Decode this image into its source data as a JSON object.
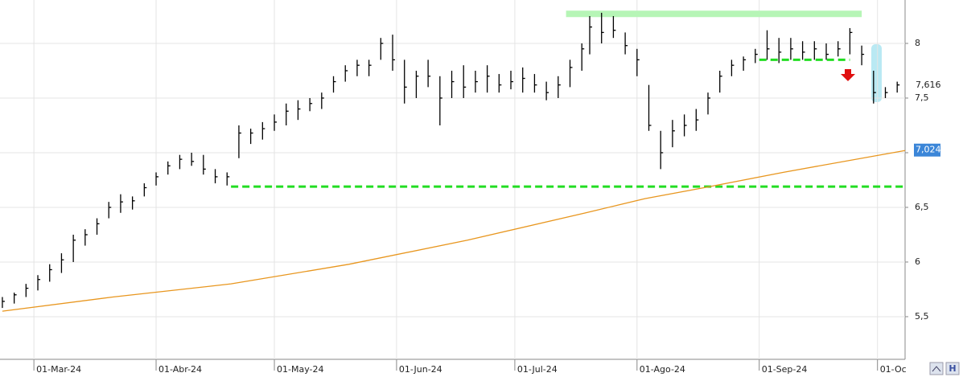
{
  "chart_data": {
    "type": "ohlc",
    "x": [
      -8,
      -5,
      -2,
      1,
      4,
      7,
      10,
      13,
      16,
      19,
      22,
      25,
      28,
      31,
      34,
      37,
      40,
      43,
      46,
      49,
      52,
      55,
      58,
      61,
      64,
      67,
      70,
      73,
      76,
      79,
      82,
      85,
      88,
      91,
      94,
      97,
      100,
      103,
      106,
      109,
      112,
      115,
      118,
      121,
      124,
      127,
      130,
      133,
      136,
      139,
      141,
      144,
      147,
      150,
      153,
      156,
      159,
      162,
      165,
      168,
      171,
      174,
      177,
      180,
      183,
      186,
      189,
      192,
      195,
      198,
      201,
      204,
      207,
      210,
      213,
      216,
      219
    ],
    "high": [
      5.68,
      5.72,
      5.8,
      5.88,
      5.98,
      6.08,
      6.25,
      6.3,
      6.4,
      6.55,
      6.62,
      6.6,
      6.72,
      6.82,
      6.92,
      6.98,
      7.0,
      6.98,
      6.85,
      6.82,
      7.25,
      7.22,
      7.28,
      7.35,
      7.45,
      7.48,
      7.5,
      7.55,
      7.7,
      7.8,
      7.85,
      7.85,
      8.05,
      8.08,
      7.85,
      7.75,
      7.85,
      7.7,
      7.75,
      7.8,
      7.75,
      7.8,
      7.72,
      7.75,
      7.78,
      7.72,
      7.65,
      7.7,
      7.85,
      8.0,
      8.25,
      8.28,
      8.25,
      8.1,
      7.95,
      7.62,
      7.2,
      7.3,
      7.35,
      7.4,
      7.55,
      7.75,
      7.85,
      7.88,
      7.95,
      8.12,
      8.05,
      8.05,
      8.02,
      8.02,
      8.0,
      8.02,
      8.14,
      7.98,
      7.75,
      7.6,
      7.65
    ],
    "low": [
      5.58,
      5.62,
      5.68,
      5.74,
      5.82,
      5.9,
      6.0,
      6.15,
      6.25,
      6.4,
      6.45,
      6.48,
      6.6,
      6.7,
      6.8,
      6.85,
      6.88,
      6.8,
      6.72,
      6.7,
      6.95,
      7.08,
      7.12,
      7.2,
      7.25,
      7.3,
      7.38,
      7.4,
      7.55,
      7.65,
      7.7,
      7.7,
      7.85,
      7.75,
      7.45,
      7.5,
      7.6,
      7.25,
      7.5,
      7.5,
      7.55,
      7.55,
      7.55,
      7.58,
      7.55,
      7.55,
      7.48,
      7.5,
      7.6,
      7.75,
      7.9,
      8.0,
      8.05,
      7.9,
      7.7,
      7.2,
      6.85,
      7.05,
      7.15,
      7.2,
      7.35,
      7.55,
      7.7,
      7.75,
      7.82,
      7.85,
      7.82,
      7.85,
      7.85,
      7.85,
      7.85,
      7.88,
      7.9,
      7.8,
      7.45,
      7.5,
      7.55
    ],
    "close": [
      5.64,
      5.7,
      5.76,
      5.84,
      5.93,
      6.02,
      6.2,
      6.25,
      6.35,
      6.5,
      6.55,
      6.56,
      6.68,
      6.78,
      6.88,
      6.94,
      6.92,
      6.85,
      6.78,
      6.78,
      7.18,
      7.18,
      7.22,
      7.28,
      7.38,
      7.4,
      7.45,
      7.5,
      7.65,
      7.75,
      7.8,
      7.8,
      8.0,
      7.85,
      7.6,
      7.7,
      7.7,
      7.5,
      7.65,
      7.6,
      7.65,
      7.7,
      7.62,
      7.65,
      7.68,
      7.62,
      7.55,
      7.62,
      7.78,
      7.95,
      8.15,
      8.1,
      8.12,
      7.98,
      7.85,
      7.25,
      7.0,
      7.2,
      7.25,
      7.3,
      7.5,
      7.7,
      7.8,
      7.85,
      7.9,
      7.95,
      7.92,
      7.95,
      7.92,
      7.95,
      7.9,
      7.95,
      8.1,
      7.9,
      7.55,
      7.55,
      7.62
    ],
    "bar_color": "#000000",
    "moving_average": {
      "color": "#e8961e",
      "x": [
        -8,
        20,
        50,
        80,
        110,
        140,
        155,
        170,
        190,
        221
      ],
      "values": [
        5.55,
        5.68,
        5.8,
        5.98,
        6.2,
        6.45,
        6.58,
        6.68,
        6.82,
        7.02
      ]
    },
    "last_price": {
      "value": 7.616,
      "label": "7,616"
    },
    "ma_last": {
      "value": 7.024,
      "label": "7,024"
    },
    "support_lines": [
      {
        "value": 6.69,
        "x": [
          50,
          221
        ],
        "color": "#22dd22"
      },
      {
        "value": 7.85,
        "x": [
          184,
          207
        ],
        "color": "#22dd22"
      },
      {
        "value": 8.27,
        "x": [
          135,
          210
        ],
        "color": "#b6f5b6"
      }
    ],
    "xlim": [
      -8.6,
      221
    ],
    "ylim": [
      5.11,
      8.397
    ],
    "xticks": [
      {
        "value": 0,
        "label": "01-Mar-24"
      },
      {
        "value": 31,
        "label": "01-Abr-24"
      },
      {
        "value": 61,
        "label": "01-May-24"
      },
      {
        "value": 92,
        "label": "01-Jun-24"
      },
      {
        "value": 122,
        "label": "01-Jul-24"
      },
      {
        "value": 153,
        "label": "01-Ago-24"
      },
      {
        "value": 184,
        "label": "01-Sep-24"
      },
      {
        "value": 214,
        "label": "01-Oc"
      }
    ],
    "yticks": [
      {
        "value": 5.5,
        "label": "5,5"
      },
      6,
      {
        "value": 6.5,
        "label": "6,5"
      },
      7,
      {
        "value": 7.5,
        "label": "7,5"
      },
      8
    ],
    "grid": true
  }
}
